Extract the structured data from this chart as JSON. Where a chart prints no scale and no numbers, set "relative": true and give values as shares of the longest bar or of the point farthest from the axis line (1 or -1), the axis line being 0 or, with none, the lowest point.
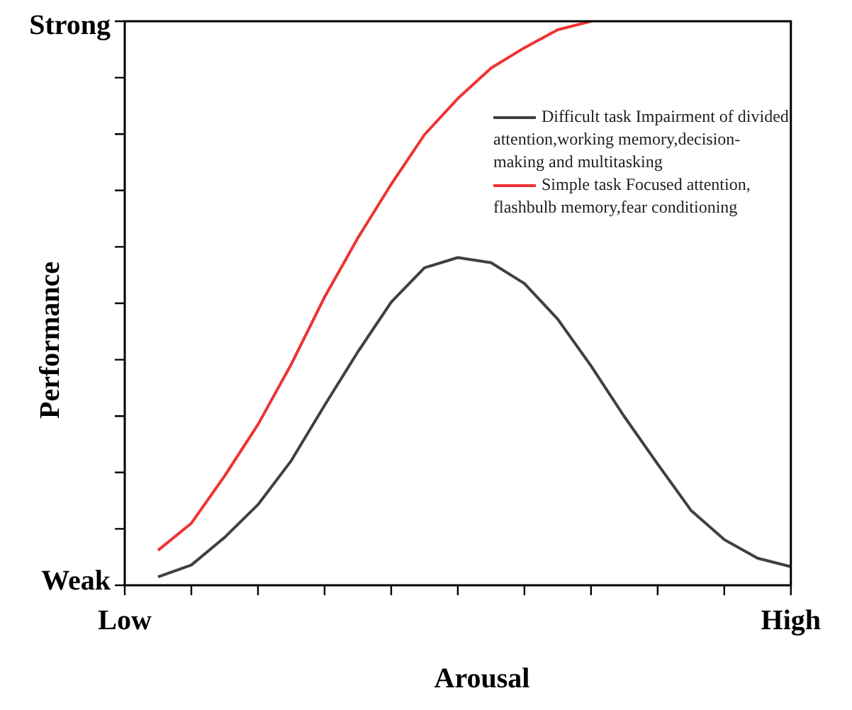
{
  "chart_data": {
    "type": "line",
    "xlabel": "Arousal",
    "ylabel": "Performance",
    "relative": true,
    "annotations": [
      "Weak",
      "Strong"
    ],
    "categories": [
      "Low",
      null,
      null,
      null,
      null,
      null,
      null,
      null,
      null,
      null,
      null,
      null,
      null,
      null,
      null,
      null,
      null,
      null,
      null,
      null,
      "High"
    ],
    "legend": "top right",
    "marker": "none",
    "line_style": "solid",
    "series": [
      {
        "name": "Difficult task Impairment of divided attention,working memory,decision-making and multitasking",
        "color": "#404040",
        "values": [
          null,
          0.015,
          0.036,
          0.085,
          0.143,
          0.221,
          0.319,
          0.414,
          0.502,
          0.563,
          0.581,
          0.572,
          0.535,
          0.472,
          0.389,
          0.299,
          0.215,
          0.133,
          0.081,
          0.048,
          0.033
        ]
      },
      {
        "name": "Simple task Focused attention, flashbulb memory,fear conditioning",
        "color": "#ee3333",
        "values": [
          null,
          0.062,
          0.11,
          0.194,
          0.285,
          0.392,
          0.511,
          0.616,
          0.711,
          0.799,
          0.863,
          0.917,
          0.953,
          0.985,
          1.0,
          null,
          null,
          null,
          null,
          null,
          null
        ]
      }
    ]
  }
}
